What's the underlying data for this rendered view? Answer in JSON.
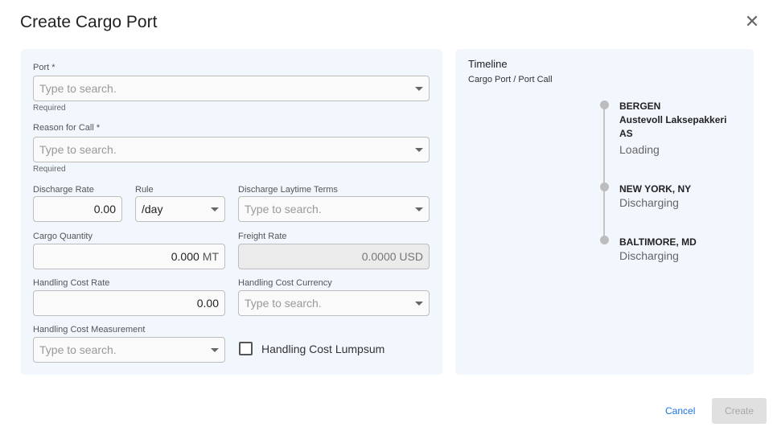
{
  "dialog": {
    "title": "Create Cargo Port",
    "close_icon": "close-icon"
  },
  "form": {
    "port": {
      "label": "Port *",
      "placeholder": "Type to search.",
      "helper": "Required"
    },
    "reason": {
      "label": "Reason for Call *",
      "placeholder": "Type to search.",
      "helper": "Required"
    },
    "discharge_rate": {
      "label": "Discharge Rate",
      "value": "0.00"
    },
    "rule": {
      "label": "Rule",
      "value": "/day"
    },
    "laytime": {
      "label": "Discharge Laytime Terms",
      "placeholder": "Type to search."
    },
    "cargo_qty": {
      "label": "Cargo Quantity",
      "value": "0.000",
      "unit": "MT"
    },
    "freight_rate": {
      "label": "Freight Rate",
      "value": "0.0000 USD"
    },
    "handling_rate": {
      "label": "Handling Cost Rate",
      "value": "0.00"
    },
    "handling_currency": {
      "label": "Handling Cost Currency",
      "placeholder": "Type to search."
    },
    "handling_measurement": {
      "label": "Handling Cost Measurement",
      "placeholder": "Type to search."
    },
    "lumpsum": {
      "label": "Handling Cost Lumpsum",
      "checked": false
    }
  },
  "timeline": {
    "title": "Timeline",
    "subtitle": "Cargo Port / Port Call",
    "items": [
      {
        "name": "BERGEN\nAustevoll Laksepakkeri\nAS",
        "status": "Loading"
      },
      {
        "name": "NEW YORK, NY",
        "status": "Discharging"
      },
      {
        "name": "BALTIMORE, MD",
        "status": "Discharging"
      }
    ]
  },
  "footer": {
    "cancel": "Cancel",
    "create": "Create"
  },
  "colors": {
    "panel": "#f2f6fd",
    "link": "#1a73e8",
    "disabled_button": "#e0e0e0"
  }
}
